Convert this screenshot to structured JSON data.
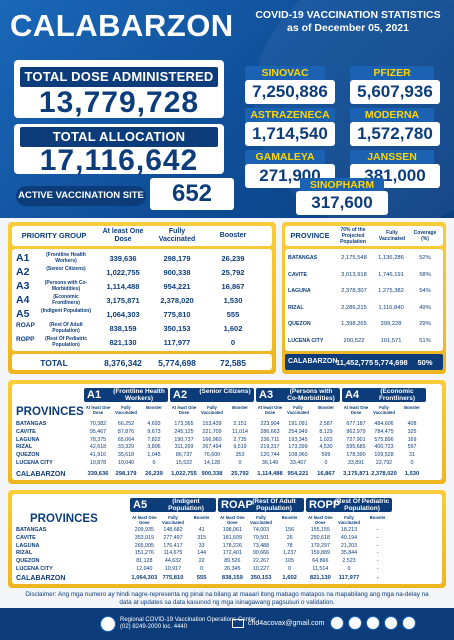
{
  "header": {
    "brand": "CALABARZON",
    "title_line1": "COVID-19 VACCINATION STATISTICS",
    "title_line2": "as of December 05, 2021"
  },
  "totals": {
    "dose_label": "TOTAL DOSE ADMINISTERED",
    "dose_value": "13,779,728",
    "alloc_label": "TOTAL ALLOCATION",
    "alloc_value": "17,116,642",
    "site_label": "ACTIVE VACCINATION SITE",
    "site_value": "652"
  },
  "vaccines": [
    {
      "label": "SINOVAC",
      "value": "7,250,886"
    },
    {
      "label": "PFIZER",
      "value": "5,607,936"
    },
    {
      "label": "ASTRAZENECA",
      "value": "1,714,540"
    },
    {
      "label": "MODERNA",
      "value": "1,572,780"
    },
    {
      "label": "GAMALEYA",
      "value": "271,900"
    },
    {
      "label": "JANSSEN",
      "value": "381,000"
    },
    {
      "label": "SINOPHARM",
      "value": "317,600"
    }
  ],
  "priority": {
    "headers": [
      "PRIORITY GROUP",
      "At least One Dose",
      "Fully Vaccinated",
      "Booster"
    ],
    "rows": [
      {
        "code": "A1",
        "desc": "(Frontline Health Workers)",
        "d1": "339,636",
        "fv": "298,179",
        "b": "26,239"
      },
      {
        "code": "A2",
        "desc": "(Senior Citizens)",
        "d1": "1,022,755",
        "fv": "900,338",
        "b": "25,792"
      },
      {
        "code": "A3",
        "desc": "(Persons with Co-Morbidities)",
        "d1": "1,114,488",
        "fv": "954,221",
        "b": "16,867"
      },
      {
        "code": "A4",
        "desc": "(Economic Frontliners)",
        "d1": "3,175,871",
        "fv": "2,378,020",
        "b": "1,530"
      },
      {
        "code": "A5",
        "desc": "(Indigent Population)",
        "d1": "1,064,303",
        "fv": "775,810",
        "b": "555"
      },
      {
        "code": "ROAP",
        "desc": "(Rest Of Adult Population)",
        "d1": "838,159",
        "fv": "350,153",
        "b": "1,602"
      },
      {
        "code": "ROPP",
        "desc": "(Rest Of Pediatric Population)",
        "d1": "821,130",
        "fv": "117,977",
        "b": "0"
      }
    ],
    "total_label": "TOTAL",
    "total_d1": "8,376,342",
    "total_fv": "5,774,698",
    "total_b": "72,585"
  },
  "province": {
    "headers": [
      "PROVINCE",
      "70% of the Projected Population",
      "Fully Vaccinated",
      "Coverage (%)"
    ],
    "rows": [
      {
        "name": "BATANGAS",
        "proj": "2,175,548",
        "fv": "1,136,286",
        "cov": "52%"
      },
      {
        "name": "CAVITE",
        "proj": "3,013,918",
        "fv": "1,746,191",
        "cov": "58%"
      },
      {
        "name": "LAGUNA",
        "proj": "2,378,307",
        "fv": "1,275,382",
        "cov": "54%"
      },
      {
        "name": "RIZAL",
        "proj": "2,286,215",
        "fv": "1,116,840",
        "cov": "49%"
      },
      {
        "name": "QUEZON",
        "proj": "1,398,265",
        "fv": "399,228",
        "cov": "29%"
      },
      {
        "name": "LUCENA CITY",
        "proj": "200,522",
        "fv": "101,571",
        "cov": "51%"
      }
    ],
    "total_label": "CALABARZON",
    "total_proj": "11,452,775",
    "total_fv": "5,774,698",
    "total_cov": "50%"
  },
  "grid1": {
    "title": "PROVINCES",
    "groups": [
      {
        "code": "A1",
        "name": "(Frontline Health Workers)"
      },
      {
        "code": "A2",
        "name": "(Senior Citizens)"
      },
      {
        "code": "A3",
        "name": "(Persons with Co-Morbidities)"
      },
      {
        "code": "A4",
        "name": "(Economic Frontliners)"
      }
    ],
    "sub": [
      "At least One Dose",
      "Fully Vaccinated",
      "Booster"
    ],
    "rows": [
      {
        "name": "BATANGAS",
        "v": [
          "70,382",
          "66,252",
          "4,693",
          "173,365",
          "153,439",
          "2,151",
          "223,904",
          "191,091",
          "2,587",
          "677,187",
          "484,606",
          "408"
        ]
      },
      {
        "name": "CAVITE",
        "v": [
          "95,467",
          "87,876",
          "9,673",
          "245,125",
          "221,709",
          "11,014",
          "286,663",
          "254,949",
          "8,129",
          "962,979",
          "784,475",
          "325"
        ]
      },
      {
        "name": "LAGUNA",
        "v": [
          "78,375",
          "65,064",
          "7,822",
          "190,737",
          "166,960",
          "2,735",
          "236,711",
          "193,345",
          "1,022",
          "727,901",
          "575,896",
          "169"
        ]
      },
      {
        "name": "RIZAL",
        "v": [
          "42,618",
          "33,329",
          "3,806",
          "311,269",
          "267,494",
          "9,519",
          "219,317",
          "173,399",
          "4,530",
          "595,685",
          "400,723",
          "597"
        ]
      },
      {
        "name": "QUEZON",
        "v": [
          "41,916",
          "35,618",
          "1,045",
          "86,737",
          "76,600",
          "353",
          "120,744",
          "108,960",
          "599",
          "178,390",
          "109,528",
          "31"
        ]
      },
      {
        "name": "LUCENA CITY",
        "v": [
          "10,878",
          "10,040",
          "0",
          "15,522",
          "14,128",
          "0",
          "36,149",
          "33,467",
          "0",
          "33,891",
          "22,792",
          "0"
        ]
      }
    ],
    "total": {
      "name": "CALABARZON",
      "v": [
        "339,636",
        "298,179",
        "26,239",
        "1,022,755",
        "900,338",
        "25,792",
        "1,114,488",
        "954,221",
        "16,867",
        "3,175,871",
        "2,378,020",
        "1,530"
      ]
    }
  },
  "grid2": {
    "title": "PROVINCES",
    "groups": [
      {
        "code": "A5",
        "name": "(Indigent Population)"
      },
      {
        "code": "ROAP",
        "name": "(Rest Of Adult Population)"
      },
      {
        "code": "ROPP",
        "name": "(Rest Of Pediatric Population)"
      }
    ],
    "sub": [
      "At least One Dose",
      "Fully Vaccinated",
      "Booster"
    ],
    "rows": [
      {
        "name": "BATANGAS",
        "v": [
          "209,935",
          "148,682",
          "41",
          "198,061",
          "74,003",
          "156",
          "155,155",
          "18,213",
          "-"
        ]
      },
      {
        "name": "CAVITE",
        "v": [
          "353,919",
          "277,497",
          "315",
          "181,609",
          "79,501",
          "26",
          "250,618",
          "40,194",
          "-"
        ]
      },
      {
        "name": "LAGUNA",
        "v": [
          "265,005",
          "176,417",
          "33",
          "178,226",
          "73,488",
          "78",
          "179,297",
          "21,203",
          "-"
        ]
      },
      {
        "name": "RIZAL",
        "v": [
          "151,276",
          "114,675",
          "144",
          "172,401",
          "90,666",
          "1,237",
          "159,889",
          "35,844",
          "-"
        ]
      },
      {
        "name": "QUEZON",
        "v": [
          "81,128",
          "44,632",
          "22",
          "89,526",
          "22,267",
          "105",
          "64,866",
          "2,523",
          "-"
        ]
      },
      {
        "name": "LUCENA CITY",
        "v": [
          "12,040",
          "10,917",
          "0",
          "26,345",
          "10,227",
          "0",
          "11,514",
          "0",
          "-"
        ]
      }
    ],
    "total": {
      "name": "CALABARZON",
      "v": [
        "1,064,303",
        "775,810",
        "555",
        "838,159",
        "350,153",
        "1,602",
        "821,130",
        "117,977",
        "-"
      ]
    }
  },
  "footer": {
    "disclaimer1": "Disclaimer: Ang mga numero ay hindi nagre-representa ng pinal na bilang at maaari itong mabago matapos na mapabilang ang mga na-delay na",
    "disclaimer2": "data at updates sa data kasunod ng mga isinagawang pagsusuri o validation.",
    "center1": "Regional COVID-19 Vaccination Operations Center",
    "center2": "(02) 8249-2000 loc. 4440",
    "email": "chd4acovax@gmail.com"
  },
  "colors": {
    "navy": "#0c3d7a",
    "blue": "#1b63b2",
    "gold": "#f2c12e",
    "yellow_text": "#ffd400"
  }
}
